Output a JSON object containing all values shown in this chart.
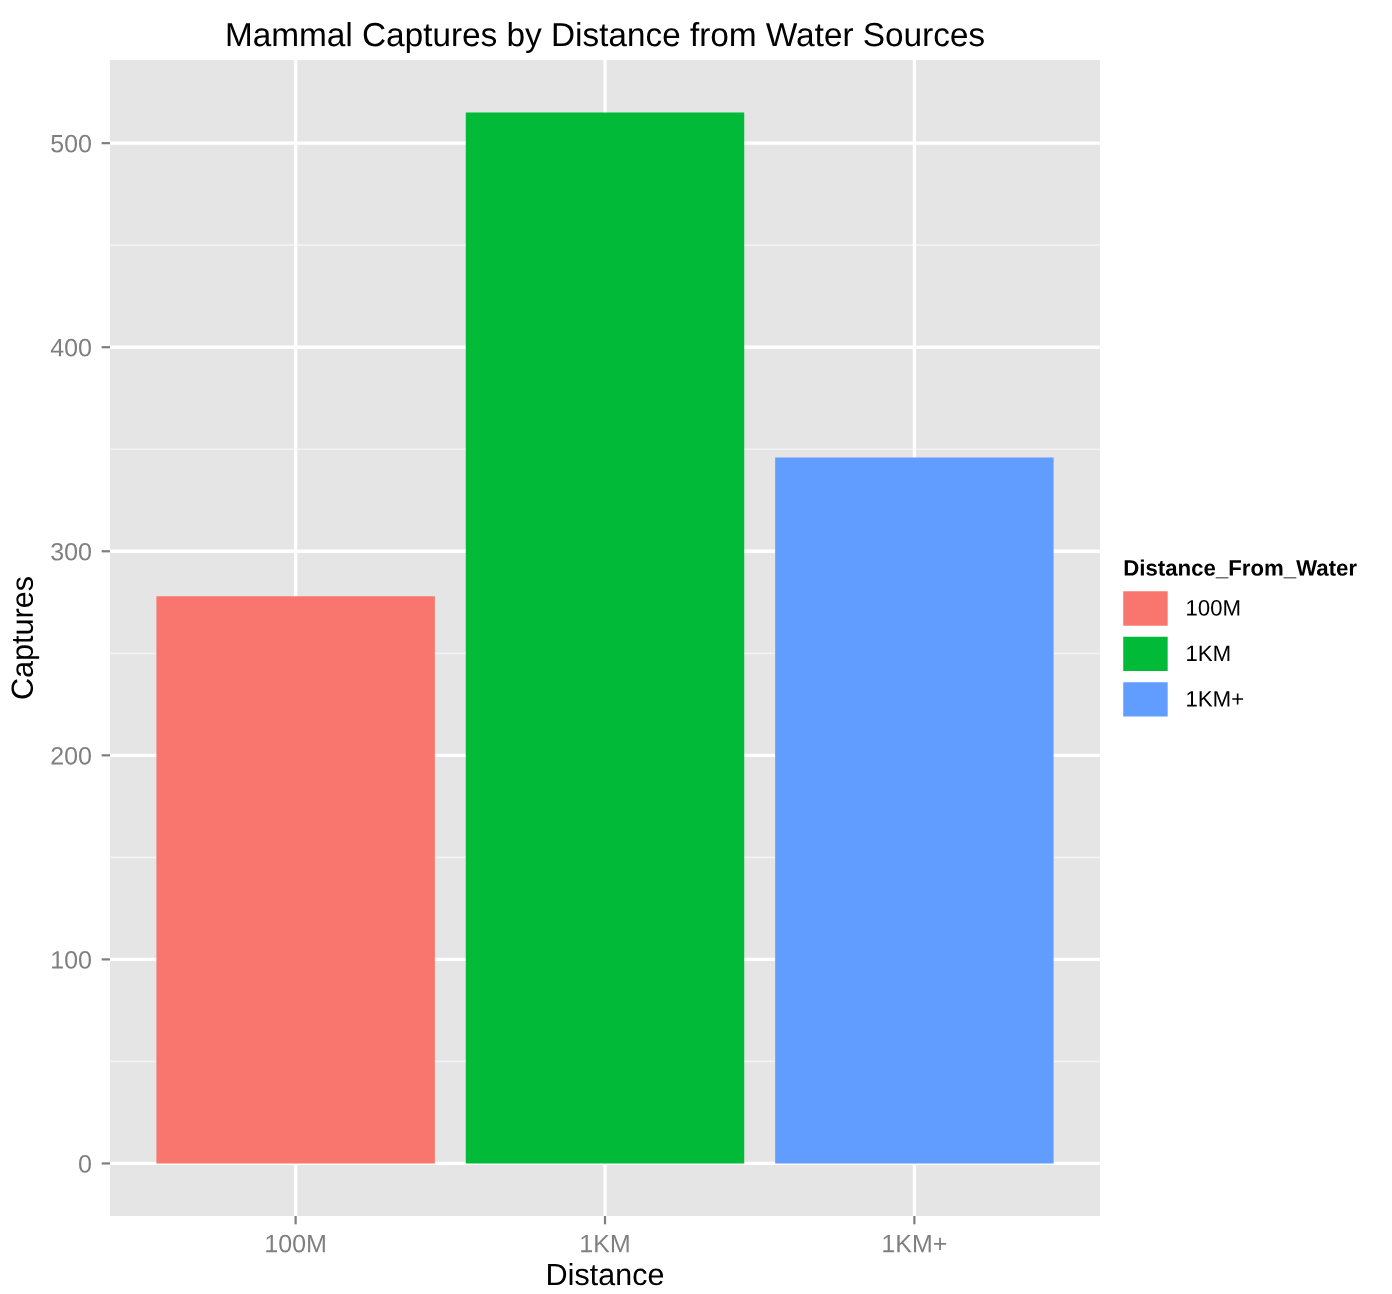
{
  "chart_data": {
    "type": "bar",
    "title": "Mammal Captures by Distance from Water Sources",
    "xlabel": "Distance",
    "ylabel": "Captures",
    "categories": [
      "100M",
      "1KM",
      "1KM+"
    ],
    "series": [
      {
        "name": "100M",
        "color": "#f8766d",
        "values": [
          278,
          null,
          null
        ]
      },
      {
        "name": "1KM",
        "color": "#00ba38",
        "values": [
          null,
          515,
          null
        ]
      },
      {
        "name": "1KM+",
        "color": "#619cff",
        "values": [
          null,
          null,
          346
        ]
      }
    ],
    "ylim": [
      -25.75,
      540.75
    ],
    "yticks": [
      0,
      100,
      200,
      300,
      400,
      500
    ],
    "grid": true,
    "legend": "right",
    "legend_title": "Distance_From_Water"
  }
}
